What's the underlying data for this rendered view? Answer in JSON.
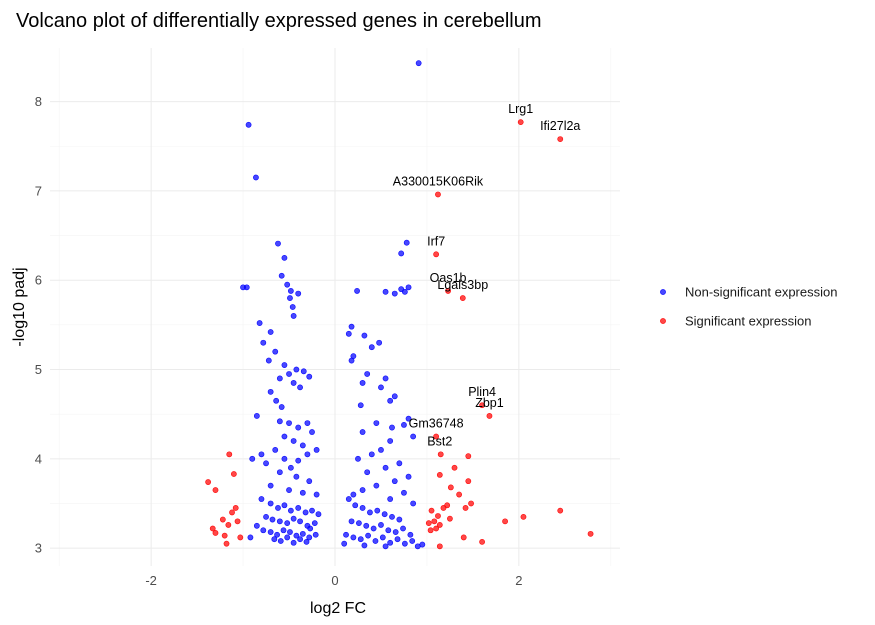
{
  "chart_data": {
    "type": "scatter",
    "title": "Volcano plot of differentially expressed genes in cerebellum",
    "xlabel": "log2 FC",
    "ylabel": "-log10 padj",
    "xlim": [
      -3.1,
      3.1
    ],
    "ylim": [
      2.8,
      8.6
    ],
    "x_ticks": [
      -2,
      0,
      2
    ],
    "y_ticks": [
      3,
      4,
      5,
      6,
      7,
      8
    ],
    "x_tick_labels": [
      "-2",
      "0",
      "2"
    ],
    "y_tick_labels": [
      "3",
      "4",
      "5",
      "6",
      "7",
      "8"
    ],
    "grid": true,
    "legend_position": "right",
    "legend": [
      {
        "label": "Non-significant expression",
        "color": "#0000ff"
      },
      {
        "label": "Significant expression",
        "color": "#ff0000"
      }
    ],
    "series": [
      {
        "name": "Non-significant expression",
        "color": "#0000ff",
        "points": [
          [
            0.91,
            8.43
          ],
          [
            -0.94,
            7.74
          ],
          [
            -0.86,
            7.15
          ],
          [
            0.78,
            6.42
          ],
          [
            -0.62,
            6.41
          ],
          [
            0.72,
            6.3
          ],
          [
            -0.55,
            6.25
          ],
          [
            -1.0,
            5.92
          ],
          [
            -0.96,
            5.92
          ],
          [
            -0.58,
            6.05
          ],
          [
            -0.52,
            5.95
          ],
          [
            -0.48,
            5.88
          ],
          [
            -0.4,
            5.85
          ],
          [
            0.24,
            5.88
          ],
          [
            0.55,
            5.87
          ],
          [
            0.65,
            5.85
          ],
          [
            0.72,
            5.9
          ],
          [
            0.8,
            5.92
          ],
          [
            0.76,
            5.87
          ],
          [
            -0.49,
            5.8
          ],
          [
            -0.46,
            5.7
          ],
          [
            -0.45,
            5.6
          ],
          [
            -0.82,
            5.52
          ],
          [
            -0.7,
            5.42
          ],
          [
            -0.78,
            5.3
          ],
          [
            -0.65,
            5.2
          ],
          [
            -0.72,
            5.1
          ],
          [
            -0.55,
            5.05
          ],
          [
            -0.42,
            5.0
          ],
          [
            -0.5,
            4.95
          ],
          [
            -0.34,
            4.98
          ],
          [
            -0.6,
            4.9
          ],
          [
            -0.45,
            4.85
          ],
          [
            -0.38,
            4.8
          ],
          [
            -0.28,
            4.92
          ],
          [
            -0.7,
            4.75
          ],
          [
            -0.64,
            4.65
          ],
          [
            -0.58,
            4.58
          ],
          [
            0.18,
            5.48
          ],
          [
            0.15,
            5.4
          ],
          [
            0.32,
            5.38
          ],
          [
            0.4,
            5.25
          ],
          [
            0.48,
            5.3
          ],
          [
            0.2,
            5.15
          ],
          [
            0.18,
            5.1
          ],
          [
            0.35,
            4.95
          ],
          [
            0.3,
            4.85
          ],
          [
            0.55,
            4.9
          ],
          [
            0.5,
            4.8
          ],
          [
            0.28,
            4.6
          ],
          [
            0.65,
            4.7
          ],
          [
            0.6,
            4.65
          ],
          [
            -0.85,
            4.48
          ],
          [
            -0.6,
            4.42
          ],
          [
            -0.5,
            4.4
          ],
          [
            -0.4,
            4.35
          ],
          [
            -0.3,
            4.4
          ],
          [
            -0.25,
            4.3
          ],
          [
            -0.55,
            4.25
          ],
          [
            -0.45,
            4.2
          ],
          [
            -0.35,
            4.15
          ],
          [
            -0.65,
            4.1
          ],
          [
            -0.8,
            4.05
          ],
          [
            -0.55,
            4.0
          ],
          [
            -0.4,
            3.98
          ],
          [
            -0.3,
            4.05
          ],
          [
            -0.2,
            4.1
          ],
          [
            -0.48,
            3.9
          ],
          [
            -0.6,
            3.85
          ],
          [
            -0.42,
            3.8
          ],
          [
            -0.28,
            3.75
          ],
          [
            -0.7,
            3.7
          ],
          [
            -0.5,
            3.65
          ],
          [
            -0.35,
            3.62
          ],
          [
            -0.2,
            3.6
          ],
          [
            -0.9,
            4.0
          ],
          [
            -0.75,
            3.95
          ],
          [
            0.8,
            4.45
          ],
          [
            0.75,
            4.38
          ],
          [
            0.62,
            4.35
          ],
          [
            0.45,
            4.4
          ],
          [
            0.3,
            4.3
          ],
          [
            0.85,
            4.25
          ],
          [
            0.6,
            4.2
          ],
          [
            0.5,
            4.1
          ],
          [
            0.4,
            4.05
          ],
          [
            0.25,
            4.0
          ],
          [
            0.7,
            3.95
          ],
          [
            0.55,
            3.9
          ],
          [
            0.35,
            3.85
          ],
          [
            0.8,
            3.8
          ],
          [
            0.65,
            3.75
          ],
          [
            0.45,
            3.7
          ],
          [
            0.3,
            3.65
          ],
          [
            0.2,
            3.6
          ],
          [
            0.6,
            3.55
          ],
          [
            0.75,
            3.62
          ],
          [
            0.85,
            3.5
          ],
          [
            -0.8,
            3.55
          ],
          [
            -0.7,
            3.5
          ],
          [
            -0.62,
            3.45
          ],
          [
            -0.55,
            3.48
          ],
          [
            -0.48,
            3.42
          ],
          [
            -0.4,
            3.45
          ],
          [
            -0.32,
            3.4
          ],
          [
            -0.25,
            3.42
          ],
          [
            -0.18,
            3.38
          ],
          [
            -0.75,
            3.35
          ],
          [
            -0.68,
            3.32
          ],
          [
            -0.6,
            3.3
          ],
          [
            -0.52,
            3.28
          ],
          [
            -0.45,
            3.33
          ],
          [
            -0.38,
            3.3
          ],
          [
            -0.3,
            3.25
          ],
          [
            -0.22,
            3.28
          ],
          [
            -0.85,
            3.25
          ],
          [
            -0.78,
            3.2
          ],
          [
            -0.7,
            3.18
          ],
          [
            -0.63,
            3.15
          ],
          [
            -0.56,
            3.2
          ],
          [
            -0.49,
            3.18
          ],
          [
            -0.42,
            3.14
          ],
          [
            -0.35,
            3.16
          ],
          [
            -0.28,
            3.12
          ],
          [
            -0.21,
            3.15
          ],
          [
            -0.66,
            3.1
          ],
          [
            -0.59,
            3.08
          ],
          [
            -0.52,
            3.12
          ],
          [
            -0.45,
            3.06
          ],
          [
            -0.38,
            3.1
          ],
          [
            -0.31,
            3.07
          ],
          [
            -0.92,
            3.12
          ],
          [
            -0.27,
            3.22
          ],
          [
            0.15,
            3.55
          ],
          [
            0.22,
            3.48
          ],
          [
            0.3,
            3.45
          ],
          [
            0.38,
            3.4
          ],
          [
            0.46,
            3.42
          ],
          [
            0.54,
            3.38
          ],
          [
            0.62,
            3.35
          ],
          [
            0.7,
            3.32
          ],
          [
            0.18,
            3.3
          ],
          [
            0.26,
            3.28
          ],
          [
            0.34,
            3.25
          ],
          [
            0.42,
            3.22
          ],
          [
            0.5,
            3.26
          ],
          [
            0.58,
            3.2
          ],
          [
            0.66,
            3.18
          ],
          [
            0.74,
            3.22
          ],
          [
            0.82,
            3.15
          ],
          [
            0.12,
            3.15
          ],
          [
            0.2,
            3.12
          ],
          [
            0.28,
            3.1
          ],
          [
            0.36,
            3.14
          ],
          [
            0.44,
            3.08
          ],
          [
            0.52,
            3.12
          ],
          [
            0.6,
            3.06
          ],
          [
            0.68,
            3.1
          ],
          [
            0.76,
            3.05
          ],
          [
            0.84,
            3.08
          ],
          [
            0.9,
            3.02
          ],
          [
            0.95,
            3.04
          ],
          [
            0.1,
            3.05
          ],
          [
            0.32,
            3.03
          ],
          [
            0.55,
            3.02
          ]
        ]
      },
      {
        "name": "Significant expression",
        "color": "#ff0000",
        "points": [
          [
            2.02,
            7.77
          ],
          [
            2.45,
            7.58
          ],
          [
            1.12,
            6.96
          ],
          [
            1.1,
            6.29
          ],
          [
            1.23,
            5.88
          ],
          [
            1.39,
            5.8
          ],
          [
            1.6,
            4.6
          ],
          [
            1.68,
            4.48
          ],
          [
            1.1,
            4.25
          ],
          [
            1.15,
            4.05
          ],
          [
            1.45,
            4.03
          ],
          [
            1.3,
            3.9
          ],
          [
            1.14,
            3.82
          ],
          [
            1.45,
            3.75
          ],
          [
            1.26,
            3.68
          ],
          [
            1.35,
            3.6
          ],
          [
            1.48,
            3.5
          ],
          [
            1.22,
            3.48
          ],
          [
            1.42,
            3.45
          ],
          [
            1.18,
            3.45
          ],
          [
            1.05,
            3.42
          ],
          [
            1.12,
            3.36
          ],
          [
            1.25,
            3.33
          ],
          [
            1.08,
            3.3
          ],
          [
            1.02,
            3.28
          ],
          [
            1.14,
            3.26
          ],
          [
            1.1,
            3.22
          ],
          [
            1.04,
            3.2
          ],
          [
            1.85,
            3.3
          ],
          [
            2.05,
            3.35
          ],
          [
            2.45,
            3.42
          ],
          [
            2.78,
            3.16
          ],
          [
            1.6,
            3.07
          ],
          [
            1.14,
            3.02
          ],
          [
            1.4,
            3.12
          ],
          [
            -1.38,
            3.74
          ],
          [
            -1.3,
            3.65
          ],
          [
            -1.15,
            4.05
          ],
          [
            -1.1,
            3.83
          ],
          [
            -1.08,
            3.45
          ],
          [
            -1.12,
            3.4
          ],
          [
            -1.22,
            3.32
          ],
          [
            -1.16,
            3.26
          ],
          [
            -1.33,
            3.22
          ],
          [
            -1.3,
            3.17
          ],
          [
            -1.2,
            3.14
          ],
          [
            -1.18,
            3.05
          ],
          [
            -1.03,
            3.12
          ],
          [
            -1.06,
            3.3
          ]
        ]
      }
    ],
    "annotations": [
      {
        "text": "Lrg1",
        "x": 2.02,
        "y": 7.77
      },
      {
        "text": "Ifi27l2a",
        "x": 2.45,
        "y": 7.58
      },
      {
        "text": "A330015K06Rik",
        "x": 1.12,
        "y": 6.96
      },
      {
        "text": "Irf7",
        "x": 1.1,
        "y": 6.29
      },
      {
        "text": "Oas1b",
        "x": 1.23,
        "y": 5.88
      },
      {
        "text": "Lgals3bp",
        "x": 1.39,
        "y": 5.8
      },
      {
        "text": "Plin4",
        "x": 1.6,
        "y": 4.6
      },
      {
        "text": "Zbp1",
        "x": 1.68,
        "y": 4.48
      },
      {
        "text": "Gm36748",
        "x": 1.1,
        "y": 4.25
      },
      {
        "text": "Bst2",
        "x": 1.14,
        "y": 4.05
      }
    ]
  }
}
